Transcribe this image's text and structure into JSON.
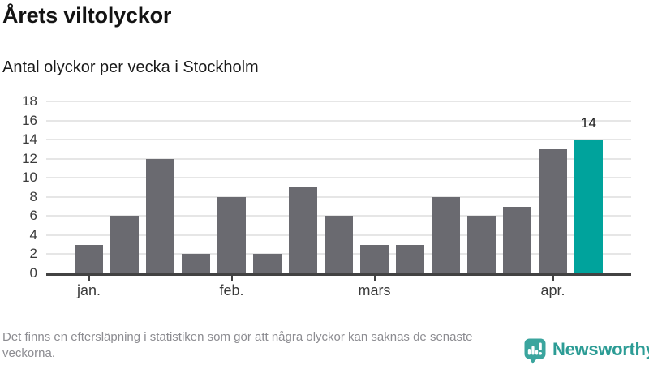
{
  "header": {
    "title": "Årets viltolyckor",
    "subtitle": "Antal olyckor per vecka i Stockholm"
  },
  "chart_data": {
    "type": "bar",
    "title": "Årets viltolyckor",
    "subtitle": "Antal olyckor per vecka i Stockholm",
    "values": [
      3,
      6,
      12,
      2,
      8,
      2,
      9,
      6,
      3,
      3,
      8,
      6,
      7,
      13,
      14
    ],
    "highlight_index": 14,
    "annotation": {
      "text": "14",
      "bar_index": 14
    },
    "yticks": [
      0,
      2,
      4,
      6,
      8,
      10,
      12,
      14,
      16,
      18
    ],
    "ylim": [
      0,
      18
    ],
    "x_month_labels": [
      {
        "label": "jan.",
        "bar_index": 0
      },
      {
        "label": "feb.",
        "bar_index": 4
      },
      {
        "label": "mars",
        "bar_index": 8
      },
      {
        "label": "apr.",
        "bar_index": 13
      }
    ],
    "grid": true,
    "legend": false,
    "colors": {
      "bar": "#6a6a70",
      "highlight": "#00a39c",
      "gridline": "#e6e6e6",
      "axis_line": "#424242",
      "axis_text": "#3b3b3b"
    }
  },
  "footer": {
    "note": "Det finns en eftersläpning i statistiken som gör att några olyckor kan saknas de senaste veckorna.",
    "brand": {
      "name": "Newsworthy",
      "color": "#2c9c95",
      "icon": "newsworthy-speech-bubble-bar-chart-icon"
    }
  }
}
